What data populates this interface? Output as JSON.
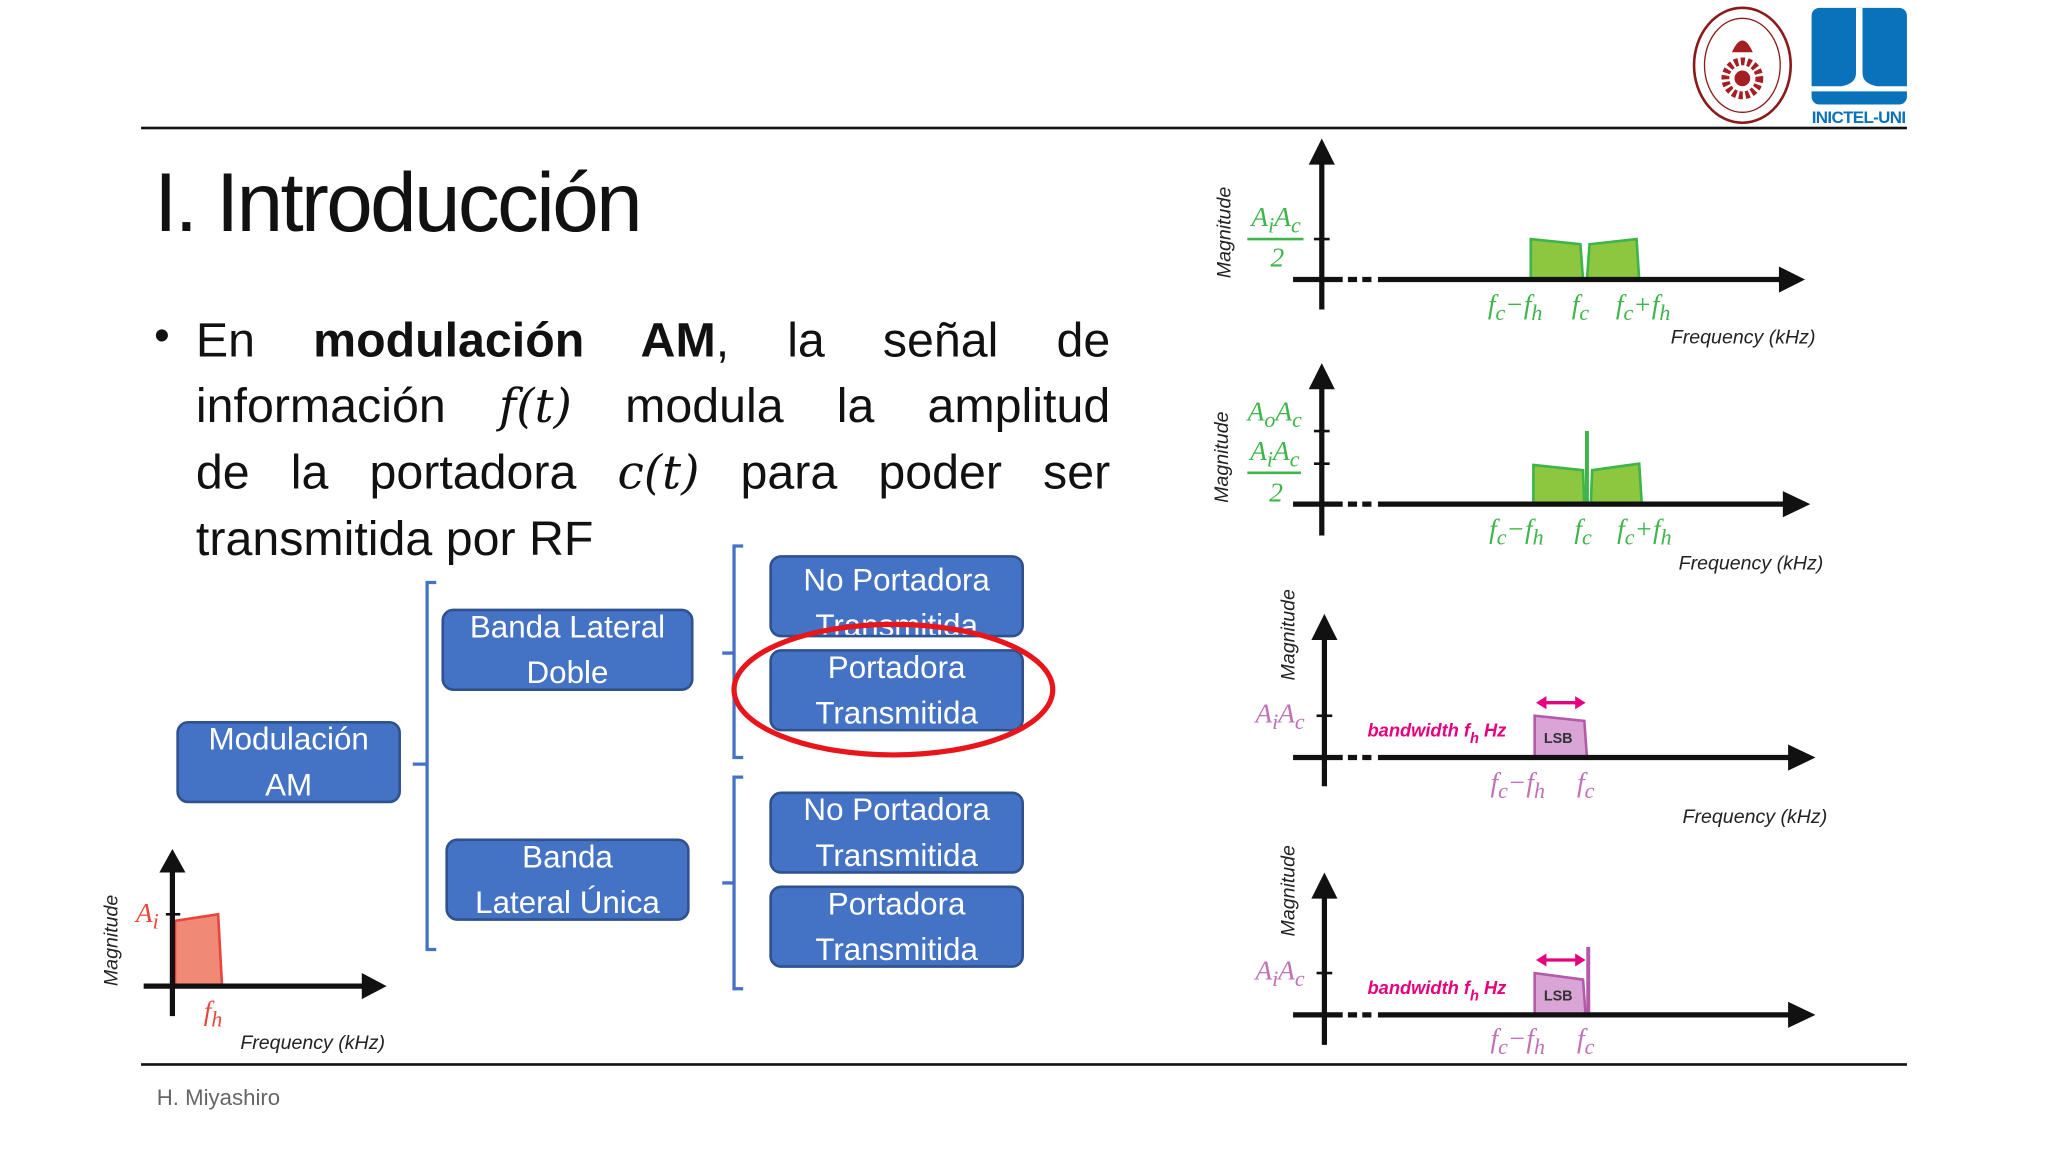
{
  "slide": {
    "title": "I. Introducción",
    "bullet": {
      "lines": [
        {
          "a": "En ",
          "bold": "modulación AM",
          "b": ", la señal de"
        },
        {
          "a": "información ",
          "math": "f(t)",
          "b": " modula la amplitud"
        },
        {
          "a": "de la portadora ",
          "math": "c(t)",
          "b": " para poder ser"
        },
        {
          "a": "transmitida por RF"
        }
      ]
    },
    "footer": "H. Miyashiro"
  },
  "logos": {
    "uni_seal": "UNIVERSIDAD NACIONAL DE INGENIERIA · SCIENTIA ET LABOR · LIMA 1876 PERU",
    "inictel": "INICTEL-UNI",
    "inictel_color": "#0A72BA",
    "uni_color": "#8B1A1A"
  },
  "tree": {
    "root": "Modulación AM",
    "branches": [
      {
        "label": [
          "Banda Lateral",
          "Doble"
        ],
        "children": [
          [
            "No Portadora",
            "Transmitida"
          ],
          [
            "Portadora",
            "Transmitida"
          ]
        ]
      },
      {
        "label": [
          "Banda",
          "Lateral Única"
        ],
        "children": [
          [
            "No Portadora",
            "Transmitida"
          ],
          [
            "Portadora",
            "Transmitida"
          ]
        ]
      }
    ],
    "highlighted": "Banda Lateral Doble / Portadora Transmitida",
    "box_color": "#4472C4",
    "highlight_color": "#E8161B"
  },
  "charts": {
    "message": {
      "ylabel": "Magnitude",
      "xlabel": "Frequency (kHz)",
      "amp": "A_i",
      "tick": "f_h",
      "color": "#E8463A"
    },
    "dsb_sc": {
      "ylabel": "Magnitude",
      "xlabel": "Frequency (kHz)",
      "amp_num": "A_iA_c",
      "amp_den": "2",
      "ticks": [
        "f_c−f_h",
        "f_c",
        "f_c+f_h"
      ],
      "color": "#3DB54A"
    },
    "dsb_tc": {
      "ylabel": "Magnitude",
      "xlabel": "Frequency (kHz)",
      "carrier_amp": "A_oA_c",
      "amp_num": "A_iA_c",
      "amp_den": "2",
      "ticks": [
        "f_c−f_h",
        "f_c",
        "f_c+f_h"
      ],
      "color": "#3DB54A"
    },
    "ssb_sc": {
      "ylabel": "Magnitude",
      "xlabel": "Frequency (kHz)",
      "amp": "A_iA_c",
      "bandwidth": "bandwidth f_h Hz",
      "band": "LSB",
      "ticks": [
        "f_c−f_h",
        "f_c"
      ],
      "color": "#B55AAB"
    },
    "ssb_tc": {
      "ylabel": "Magnitude",
      "amp": "A_iA_c",
      "bandwidth": "bandwidth f_h Hz",
      "band": "LSB",
      "ticks": [
        "f_c−f_h",
        "f_c"
      ],
      "color": "#B55AAB"
    }
  }
}
